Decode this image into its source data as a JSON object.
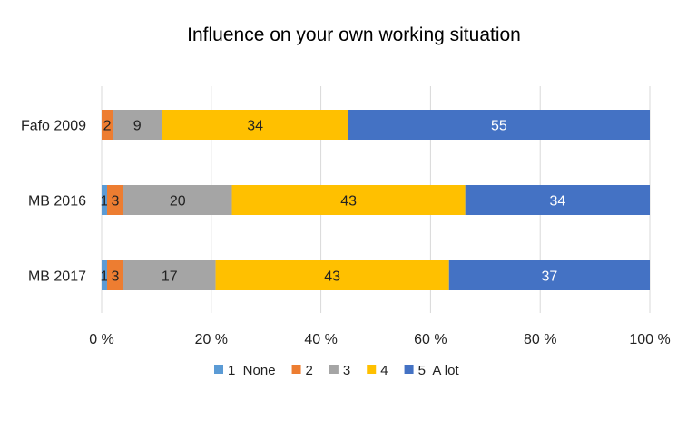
{
  "chart_data": {
    "type": "bar",
    "orientation": "horizontal",
    "stacked": "percent",
    "title": "Influence on your own working situation",
    "categories": [
      "Fafo 2009",
      "MB 2016",
      "MB 2017"
    ],
    "series": [
      {
        "name": "1  None",
        "color": "#5B9BD5",
        "values": [
          0,
          1,
          1
        ],
        "labels": [
          "",
          "1",
          "1"
        ]
      },
      {
        "name": "2",
        "color": "#ED7D31",
        "values": [
          2,
          3,
          3
        ],
        "labels": [
          "2",
          "3",
          "3"
        ]
      },
      {
        "name": "3",
        "color": "#A5A5A5",
        "values": [
          9,
          20,
          17
        ],
        "labels": [
          "9",
          "20",
          "17"
        ]
      },
      {
        "name": "4",
        "color": "#FFC000",
        "values": [
          34,
          43,
          43
        ],
        "labels": [
          "34",
          "43",
          "43"
        ]
      },
      {
        "name": "5  A lot",
        "color": "#4472C4",
        "values": [
          55,
          34,
          37
        ],
        "labels": [
          "55",
          "34",
          "37"
        ]
      }
    ],
    "xlim": [
      0,
      100
    ],
    "xticks": [
      "0 %",
      "20 %",
      "40 %",
      "60 %",
      "80 %",
      "100 %"
    ],
    "grid": true,
    "legend": "bottom"
  }
}
